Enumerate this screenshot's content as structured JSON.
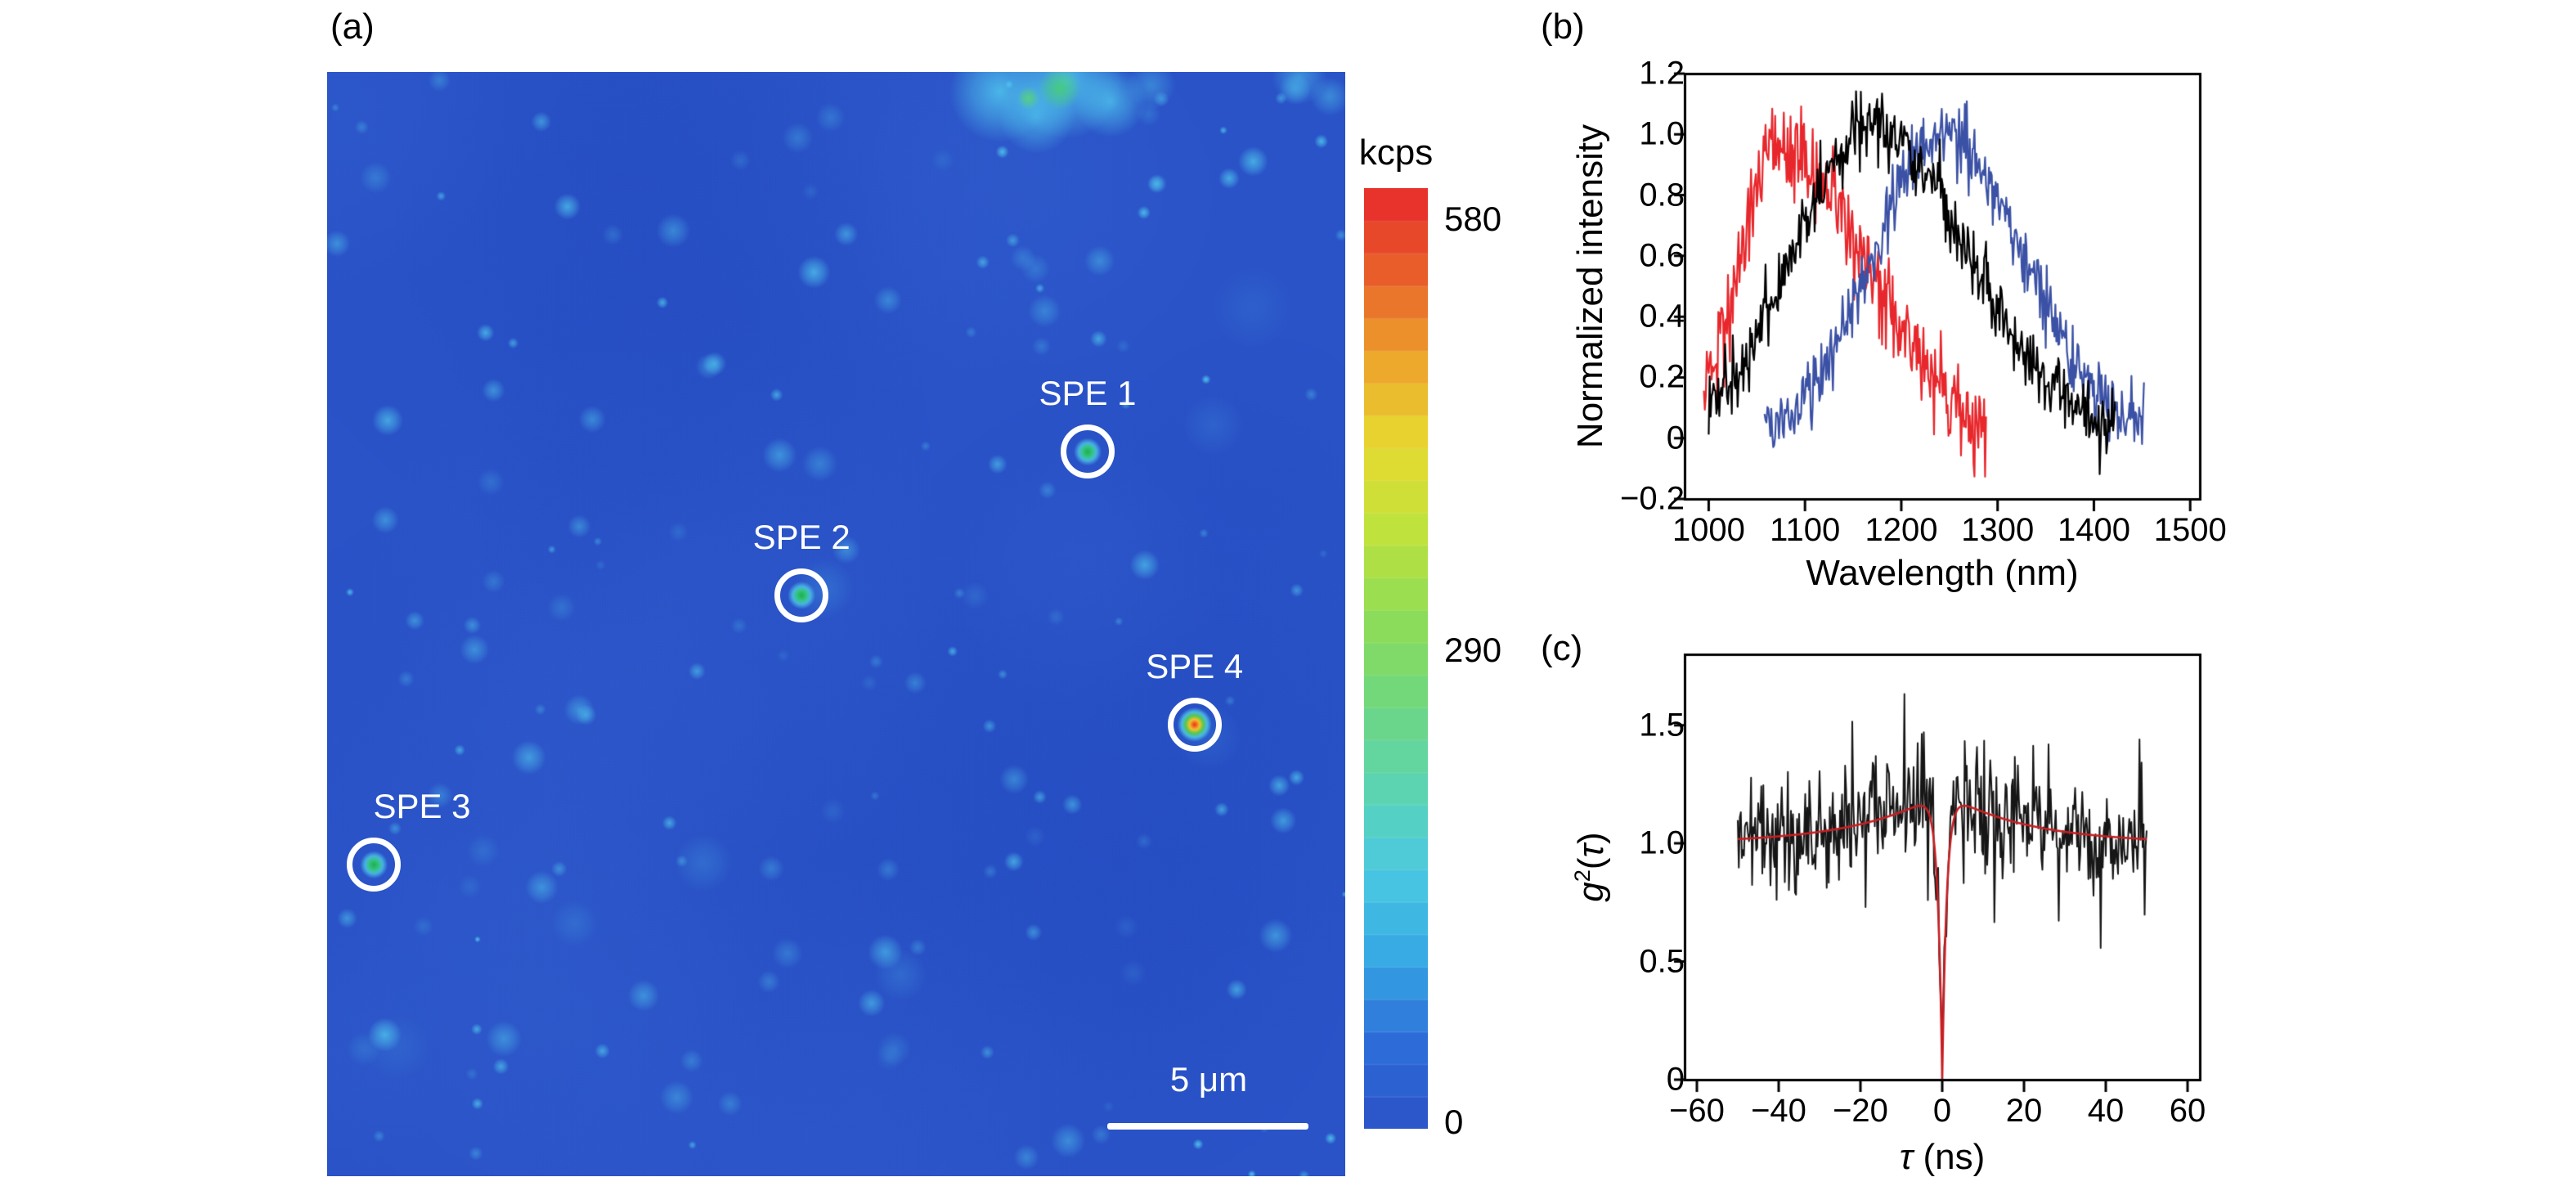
{
  "panels": {
    "a_label": "(a)",
    "b_label": "(b)",
    "c_label": "(c)"
  },
  "chart_data": [
    {
      "id": "a",
      "type": "heatmap",
      "description": "Confocal photoluminescence scan map with four circled single-photon emitters",
      "background_color": "#2a53c8",
      "spot_color": "#52ceee",
      "colorbar": {
        "title": "kcps",
        "min": 0,
        "mid": 290,
        "max": 580,
        "ticks": [
          "580",
          "290",
          "0"
        ],
        "colormap": "jet",
        "stops": [
          "#2a52c8",
          "#2d6cd9",
          "#36a7e4",
          "#4ac9e2",
          "#5cd4b0",
          "#6fd77f",
          "#8fdd55",
          "#bfe23c",
          "#e7da30",
          "#eca42c",
          "#e8602a",
          "#e7292b"
        ]
      },
      "scalebar": {
        "label": "5 μm"
      },
      "emitters": [
        {
          "label": "SPE 1",
          "x": 0.747,
          "y": 0.344,
          "palette": "green"
        },
        {
          "label": "SPE 2",
          "x": 0.466,
          "y": 0.474,
          "palette": "green"
        },
        {
          "label": "SPE 3",
          "x": 0.046,
          "y": 0.718,
          "palette": "green"
        },
        {
          "label": "SPE 4",
          "x": 0.852,
          "y": 0.591,
          "palette": "red"
        }
      ]
    },
    {
      "id": "b",
      "type": "line",
      "xlabel": "Wavelength (nm)",
      "ylabel": "Normalized intensity",
      "xlim": [
        975,
        1510
      ],
      "ylim": [
        -0.2,
        1.2
      ],
      "xticks": [
        1000,
        1100,
        1200,
        1300,
        1400,
        1500
      ],
      "xtick_labels": [
        "1000",
        "1100",
        "1200",
        "1300",
        "1400",
        "1500"
      ],
      "yticks": [
        1.2,
        1.0,
        0.8,
        0.6,
        0.4,
        0.2,
        0,
        -0.2
      ],
      "ytick_labels": [
        "1.2",
        "1.0",
        "0.8",
        "0.6",
        "0.4",
        "0.2",
        "0",
        "−0.2"
      ],
      "series": [
        {
          "name": "SPE spectrum red",
          "color": "#e8272c",
          "x_start": 995,
          "x_end": 1288,
          "peak_nm": 1072,
          "sigma_left": 40,
          "sigma_right": 90,
          "amp": 0.97,
          "noise": 0.085,
          "seed": 101
        },
        {
          "name": "SPE spectrum blue",
          "color": "#3b51a5",
          "x_start": 1058,
          "x_end": 1452,
          "peak_nm": 1243,
          "sigma_left": 72,
          "sigma_right": 82,
          "amp": 1.0,
          "noise": 0.055,
          "seed": 103
        },
        {
          "name": "SPE spectrum black",
          "color": "#000000",
          "x_start": 1000,
          "x_end": 1422,
          "peak_nm": 1168,
          "sigma_left": 78,
          "sigma_right": 100,
          "amp": 1.02,
          "noise": 0.06,
          "seed": 102
        }
      ]
    },
    {
      "id": "c",
      "type": "line",
      "xlabel_tau": "τ",
      "xlabel_rest": " (ns)",
      "ylabel_g": "g",
      "ylabel_sup": "2",
      "ylabel_open": "(",
      "ylabel_tau": "τ",
      "ylabel_close": ")",
      "xlim": [
        -63,
        63
      ],
      "ylim": [
        0,
        1.8
      ],
      "xticks": [
        -60,
        -40,
        -20,
        0,
        20,
        40,
        60
      ],
      "xtick_labels": [
        "−60",
        "−40",
        "−20",
        "0",
        "20",
        "40",
        "60"
      ],
      "yticks": [
        1.5,
        1.0,
        0.5,
        0
      ],
      "ytick_labels": [
        "1.5",
        "1.0",
        "0.5",
        "0"
      ],
      "trace": {
        "color": "#161616",
        "x_start": -50,
        "x_end": 50,
        "step": 0.25,
        "noise": 0.115,
        "seed": 205
      },
      "fit": {
        "color": "#c81e22",
        "baseline": 1.0,
        "g2_at_zero": 0,
        "antibunching_tau_ns": 1.1,
        "bunching_amp": 0.22,
        "bunching_tau_ns": 20
      }
    }
  ]
}
